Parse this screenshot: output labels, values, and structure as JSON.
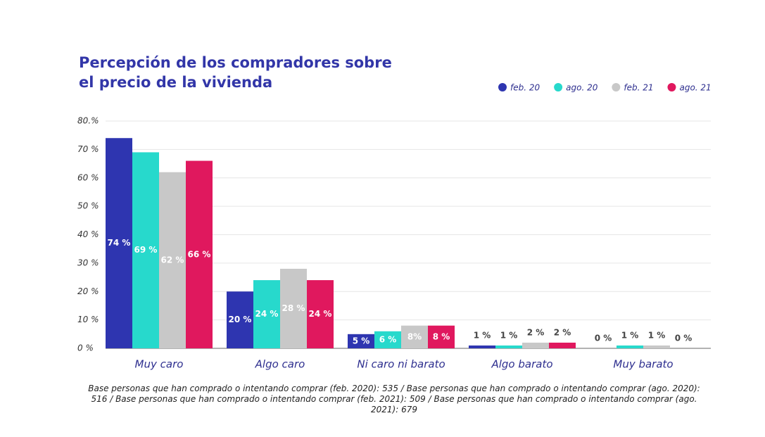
{
  "chart_data": {
    "type": "bar",
    "title": [
      "Percepción de los compradores sobre",
      "el precio de la vivienda"
    ],
    "categories": [
      "Muy caro",
      "Algo caro",
      "Ni caro ni barato",
      "Algo barato",
      "Muy barato"
    ],
    "series": [
      {
        "name": "feb. 20",
        "color": "#2e35b0",
        "values": [
          74,
          20,
          5,
          1,
          0
        ],
        "value_labels": [
          "74 %",
          "20 %",
          "5 %",
          "1 %",
          "0 %"
        ]
      },
      {
        "name": "ago. 20",
        "color": "#27d9cc",
        "values": [
          69,
          24,
          6,
          1,
          1
        ],
        "value_labels": [
          "69 %",
          "24 %",
          "6 %",
          "1 %",
          "1 %"
        ]
      },
      {
        "name": "feb. 21",
        "color": "#c8c8c8",
        "values": [
          62,
          28,
          8,
          2,
          1
        ],
        "value_labels": [
          "62 %",
          "28 %",
          "8%",
          "2 %",
          "1 %"
        ]
      },
      {
        "name": "ago. 21",
        "color": "#e0185e",
        "values": [
          66,
          24,
          8,
          2,
          0
        ],
        "value_labels": [
          "66 %",
          "24 %",
          "8 %",
          "2 %",
          "0 %"
        ]
      }
    ],
    "ylim": [
      0,
      80
    ],
    "yticks": [
      {
        "value": 0,
        "label": "0 %"
      },
      {
        "value": 10,
        "label": "10 %"
      },
      {
        "value": 20,
        "label": "20 %"
      },
      {
        "value": 30,
        "label": "30 %"
      },
      {
        "value": 40,
        "label": "40 %"
      },
      {
        "value": 50,
        "label": "50 %"
      },
      {
        "value": 60,
        "label": "60 %"
      },
      {
        "value": 70,
        "label": "70 %"
      },
      {
        "value": 80,
        "label": "80.%"
      }
    ],
    "grid": true,
    "legend": "top-right",
    "note": "Base personas que han comprado o intentando comprar (feb. 2020): 535 / Base personas que han comprado o intentando comprar (ago. 2020): 516 / Base personas que han comprado o intentando comprar (feb. 2021): 509 / Base personas que han comprado o intentando comprar (ago. 2021): 679"
  }
}
